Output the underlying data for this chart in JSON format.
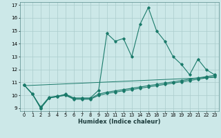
{
  "xlabel": "Humidex (Indice chaleur)",
  "background_color": "#cce8e8",
  "grid_color": "#aacccc",
  "line_color": "#1a7a6a",
  "xlim": [
    -0.5,
    23.5
  ],
  "ylim": [
    8.8,
    17.2
  ],
  "yticks": [
    9,
    10,
    11,
    12,
    13,
    14,
    15,
    16,
    17
  ],
  "xticks": [
    0,
    1,
    2,
    3,
    4,
    5,
    6,
    7,
    8,
    9,
    10,
    11,
    12,
    13,
    14,
    15,
    16,
    17,
    18,
    19,
    20,
    21,
    22,
    23
  ],
  "line1_x": [
    0,
    1,
    2,
    3,
    4,
    5,
    6,
    7,
    8,
    9,
    10,
    11,
    12,
    13,
    14,
    15,
    16,
    17,
    18,
    19,
    20,
    21,
    22,
    23
  ],
  "line1_y": [
    10.8,
    10.1,
    9.0,
    9.8,
    9.9,
    10.1,
    9.8,
    9.8,
    9.8,
    10.4,
    14.8,
    14.2,
    14.4,
    13.0,
    15.5,
    16.8,
    15.0,
    14.2,
    13.0,
    12.4,
    11.6,
    12.8,
    12.0,
    11.6
  ],
  "line2_x": [
    0,
    1,
    2,
    3,
    4,
    5,
    6,
    7,
    8,
    9,
    10,
    11,
    12,
    13,
    14,
    15,
    16,
    17,
    18,
    19,
    20,
    21,
    22,
    23
  ],
  "line2_y": [
    10.8,
    10.1,
    9.1,
    9.85,
    9.95,
    10.05,
    9.75,
    9.75,
    9.75,
    10.1,
    10.25,
    10.35,
    10.45,
    10.55,
    10.65,
    10.75,
    10.85,
    10.95,
    11.05,
    11.15,
    11.25,
    11.35,
    11.45,
    11.55
  ],
  "line3_x": [
    0,
    1,
    2,
    3,
    4,
    5,
    6,
    7,
    8,
    9,
    10,
    11,
    12,
    13,
    14,
    15,
    16,
    17,
    18,
    19,
    20,
    21,
    22,
    23
  ],
  "line3_y": [
    10.8,
    10.1,
    9.0,
    9.8,
    9.9,
    10.0,
    9.7,
    9.7,
    9.7,
    10.0,
    10.15,
    10.25,
    10.35,
    10.45,
    10.55,
    10.65,
    10.75,
    10.85,
    10.95,
    11.05,
    11.15,
    11.25,
    11.35,
    11.45
  ],
  "line4_x": [
    0,
    23
  ],
  "line4_y": [
    10.75,
    11.4
  ]
}
